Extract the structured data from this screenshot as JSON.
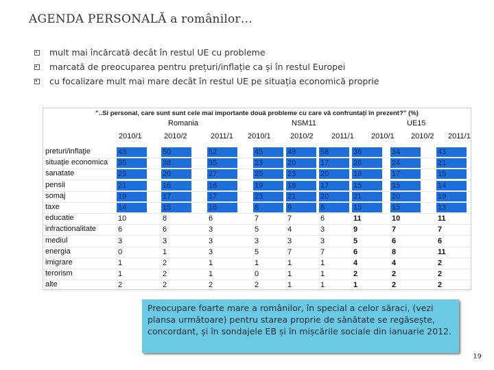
{
  "title": "AGENDA PERSONALĂ  a românilor…",
  "bullets": [
    "mult mai încărcată decât în restul UE  cu probleme",
    "marcată de preocuparea pentru prețuri/inflație ca și în restul Europei",
    "cu focalizare mult mai mare decât în restul UE pe situația economică proprie"
  ],
  "table": {
    "caption": "”..Si personal, care sunt sunt cele mai importante două probleme cu care vă confruntați în prezent?” (%)",
    "groups": [
      "Romania",
      "NSM11",
      "UE15"
    ],
    "columns": [
      "2010/1",
      "2010/2",
      "2011/1",
      "2010/1",
      "2010/2",
      "2011/1",
      "2010/1",
      "2010/2",
      "2011/1"
    ],
    "rows": [
      {
        "label": "preturi/inflaţie",
        "values": [
          "43",
          "50",
          "52",
          "45",
          "49",
          "58",
          "36",
          "34",
          "43"
        ]
      },
      {
        "label": "situaţie economica",
        "values": [
          "35",
          "38",
          "35",
          "23",
          "20",
          "17",
          "26",
          "24",
          "21"
        ]
      },
      {
        "label": "sanatate",
        "values": [
          "25",
          "20",
          "27",
          "25",
          "23",
          "20",
          "16",
          "17",
          "15"
        ]
      },
      {
        "label": "pensii",
        "values": [
          "21",
          "16",
          "18",
          "19",
          "18",
          "17",
          "15",
          "15",
          "14"
        ]
      },
      {
        "label": "somaj",
        "values": [
          "19",
          "17",
          "17",
          "23",
          "21",
          "20",
          "21",
          "20",
          "19"
        ]
      },
      {
        "label": "taxe",
        "values": [
          "14",
          "15",
          "16",
          "8",
          "9",
          "8",
          "15",
          "15",
          "13"
        ]
      },
      {
        "label": "educatie",
        "values": [
          "10",
          "8",
          "6",
          "7",
          "7",
          "6",
          "11",
          "10",
          "11"
        ]
      },
      {
        "label": "infractionalitate",
        "values": [
          "6",
          "6",
          "3",
          "5",
          "4",
          "3",
          "9",
          "7",
          "7"
        ]
      },
      {
        "label": "mediul",
        "values": [
          "3",
          "3",
          "3",
          "3",
          "3",
          "3",
          "5",
          "6",
          "6"
        ]
      },
      {
        "label": "energia",
        "values": [
          "0",
          "1",
          "3",
          "5",
          "7",
          "7",
          "6",
          "8",
          "11"
        ]
      },
      {
        "label": "imigrare",
        "values": [
          "1",
          "2",
          "1",
          "1",
          "1",
          "1",
          "4",
          "4",
          "2"
        ]
      },
      {
        "label": "terorism",
        "values": [
          "1",
          "2",
          "1",
          "0",
          "1",
          "1",
          "2",
          "2",
          "2"
        ]
      },
      {
        "label": "alte",
        "values": [
          "2",
          "2",
          "2",
          "2",
          "1",
          "1",
          "1",
          "2",
          "2"
        ]
      }
    ],
    "highlight_color": "#1f6fdb"
  },
  "note": "Preocupare foarte mare a românilor, în special a celor săraci, (vezi plansa următoare)   pentru starea proprie de sănătate se regăsește, concordant, și în sondajele EB și în mișcările sociale din ianuarie 2012.",
  "page_number": "19"
}
